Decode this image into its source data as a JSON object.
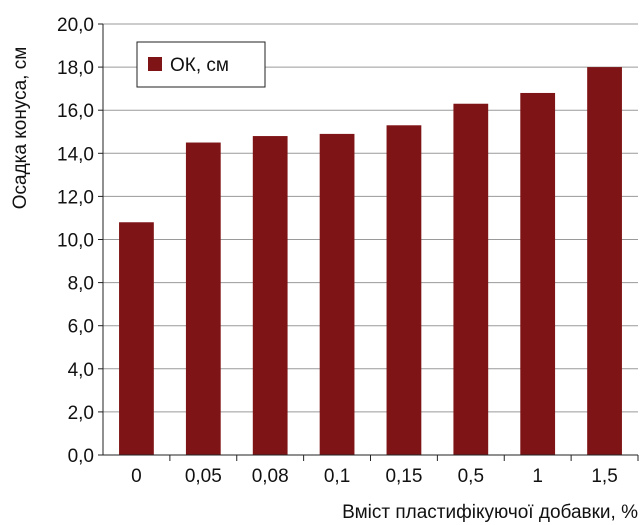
{
  "chart_data": {
    "type": "bar",
    "categories": [
      "0",
      "0,05",
      "0,08",
      "0,1",
      "0,15",
      "0,5",
      "1",
      "1,5"
    ],
    "series": [
      {
        "name": "ОК, см",
        "values": [
          10.8,
          14.5,
          14.8,
          14.9,
          15.3,
          16.3,
          16.8,
          18.0
        ],
        "color": "#7f1416"
      }
    ],
    "xlabel": "Вміст пластифікуючої добавки, %",
    "ylabel": "Осадка конуса, см",
    "ylim": [
      0,
      20
    ],
    "yticks": [
      "0,0",
      "2,0",
      "4,0",
      "6,0",
      "8,0",
      "10,0",
      "12,0",
      "14,0",
      "16,0",
      "18,0",
      "20,0"
    ],
    "grid": true,
    "legend_position": "top-left"
  }
}
